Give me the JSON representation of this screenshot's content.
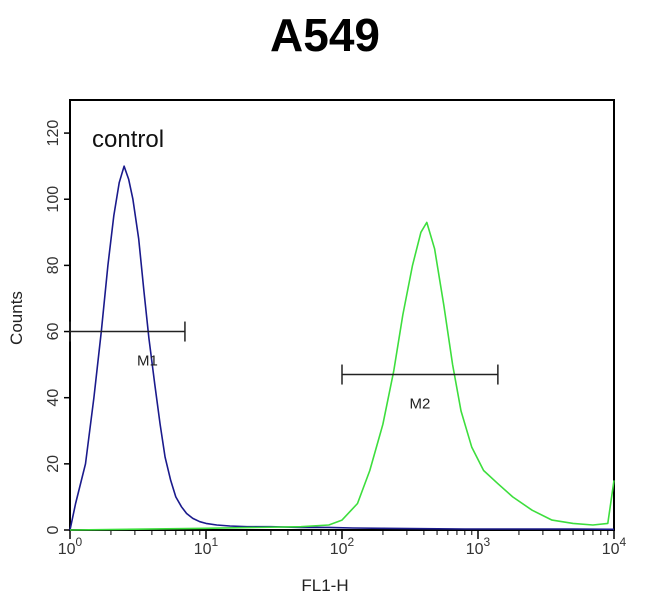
{
  "chart_data": {
    "type": "line",
    "title": "A549",
    "xlabel": "FL1-H",
    "ylabel": "Counts",
    "xscale": "log",
    "xlim": [
      1,
      10000
    ],
    "ylim": [
      0,
      130
    ],
    "x_ticks": [
      {
        "base": "10",
        "exp": "0"
      },
      {
        "base": "10",
        "exp": "1"
      },
      {
        "base": "10",
        "exp": "2"
      },
      {
        "base": "10",
        "exp": "3"
      },
      {
        "base": "10",
        "exp": "4"
      }
    ],
    "y_ticks": [
      "0",
      "20",
      "40",
      "60",
      "80",
      "100",
      "120"
    ],
    "annotations": {
      "control": "control",
      "m1": {
        "label": "M1",
        "x_range": [
          1.0,
          7.0
        ],
        "y": 60
      },
      "m2": {
        "label": "M2",
        "x_range": [
          100,
          1400
        ],
        "y": 47
      }
    },
    "series": [
      {
        "color": "#1a1a8c",
        "x": [
          1.0,
          1.1,
          1.3,
          1.5,
          1.7,
          1.9,
          2.1,
          2.3,
          2.5,
          2.7,
          2.9,
          3.2,
          3.5,
          3.8,
          4.2,
          4.6,
          5.0,
          5.5,
          6.0,
          6.6,
          7.2,
          8.0,
          9.0,
          10.0,
          12,
          15,
          20,
          30,
          50,
          80,
          120,
          200,
          400,
          800,
          2000,
          5000,
          10000
        ],
        "y": [
          0,
          8,
          20,
          40,
          60,
          80,
          95,
          105,
          110,
          106,
          100,
          88,
          72,
          58,
          44,
          32,
          22,
          15,
          10,
          7,
          5,
          3.5,
          2.5,
          2,
          1.5,
          1.2,
          1,
          1,
          0.8,
          0.8,
          0.6,
          0.5,
          0.4,
          0.3,
          0.3,
          0.3,
          0.2
        ]
      },
      {
        "color": "#3dde3d",
        "x": [
          1.0,
          10,
          50,
          80,
          100,
          130,
          160,
          200,
          240,
          280,
          330,
          380,
          420,
          480,
          560,
          650,
          750,
          900,
          1100,
          1400,
          1800,
          2500,
          3500,
          5000,
          7000,
          9000,
          10000
        ],
        "y": [
          0,
          0.5,
          1,
          1.5,
          3,
          8,
          18,
          32,
          48,
          65,
          80,
          90,
          93,
          85,
          68,
          50,
          36,
          25,
          18,
          14,
          10,
          6,
          3,
          2,
          1.5,
          2,
          15
        ]
      }
    ]
  }
}
